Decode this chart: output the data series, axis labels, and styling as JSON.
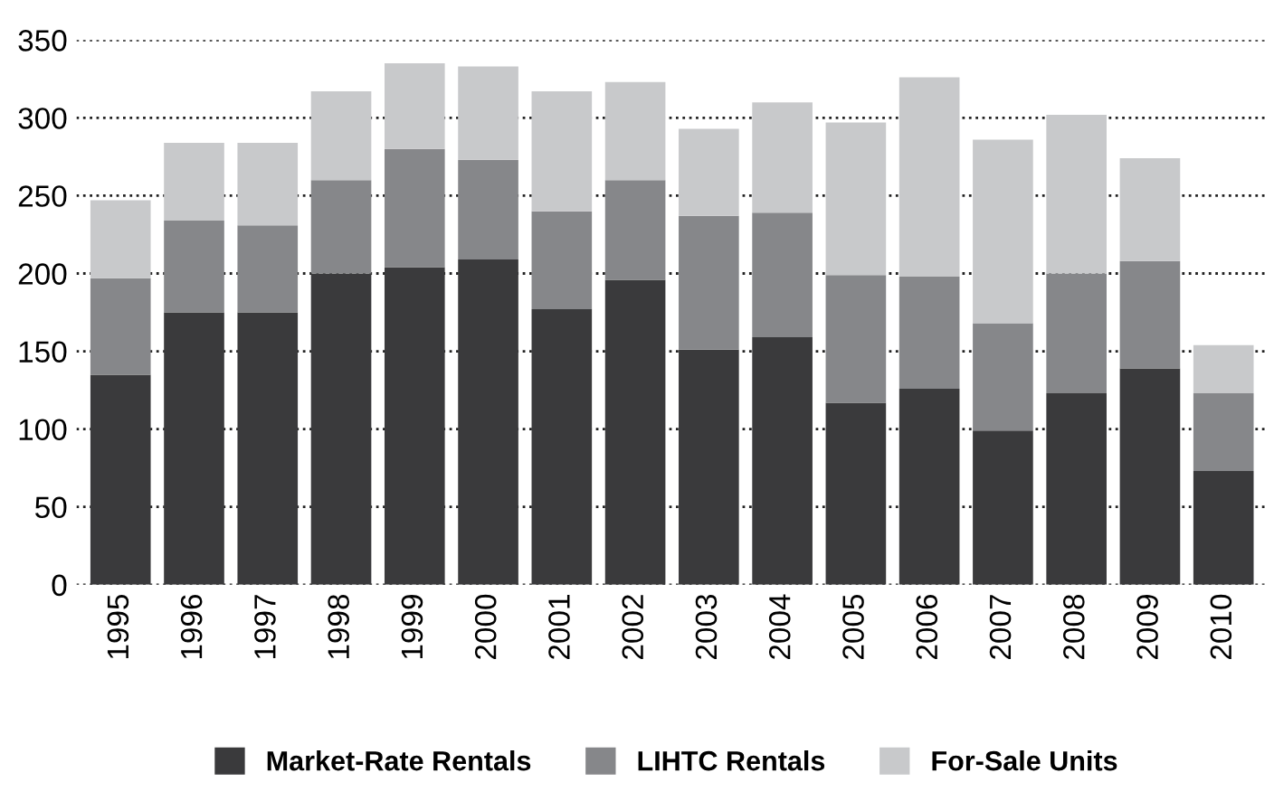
{
  "chart_data": {
    "type": "bar",
    "stacked": true,
    "categories": [
      "1995",
      "1996",
      "1997",
      "1998",
      "1999",
      "2000",
      "2001",
      "2002",
      "2003",
      "2004",
      "2005",
      "2006",
      "2007",
      "2008",
      "2009",
      "2010"
    ],
    "series": [
      {
        "name": "Market-Rate Rentals",
        "color": "#3a3a3c",
        "values": [
          135,
          175,
          175,
          200,
          204,
          209,
          177,
          196,
          151,
          159,
          117,
          126,
          99,
          123,
          139,
          73
        ]
      },
      {
        "name": "LIHTC Rentals",
        "color": "#86878a",
        "values": [
          62,
          59,
          56,
          60,
          76,
          64,
          63,
          64,
          86,
          80,
          82,
          72,
          69,
          77,
          69,
          50
        ]
      },
      {
        "name": "For-Sale Units",
        "color": "#c8c9cb",
        "values": [
          50,
          50,
          53,
          57,
          55,
          60,
          77,
          63,
          56,
          71,
          98,
          128,
          118,
          102,
          66,
          31
        ]
      }
    ],
    "ylim": [
      0,
      350
    ],
    "yticks": [
      0,
      50,
      100,
      150,
      200,
      250,
      300,
      350
    ],
    "grid": "y",
    "legend": "bottom left"
  }
}
